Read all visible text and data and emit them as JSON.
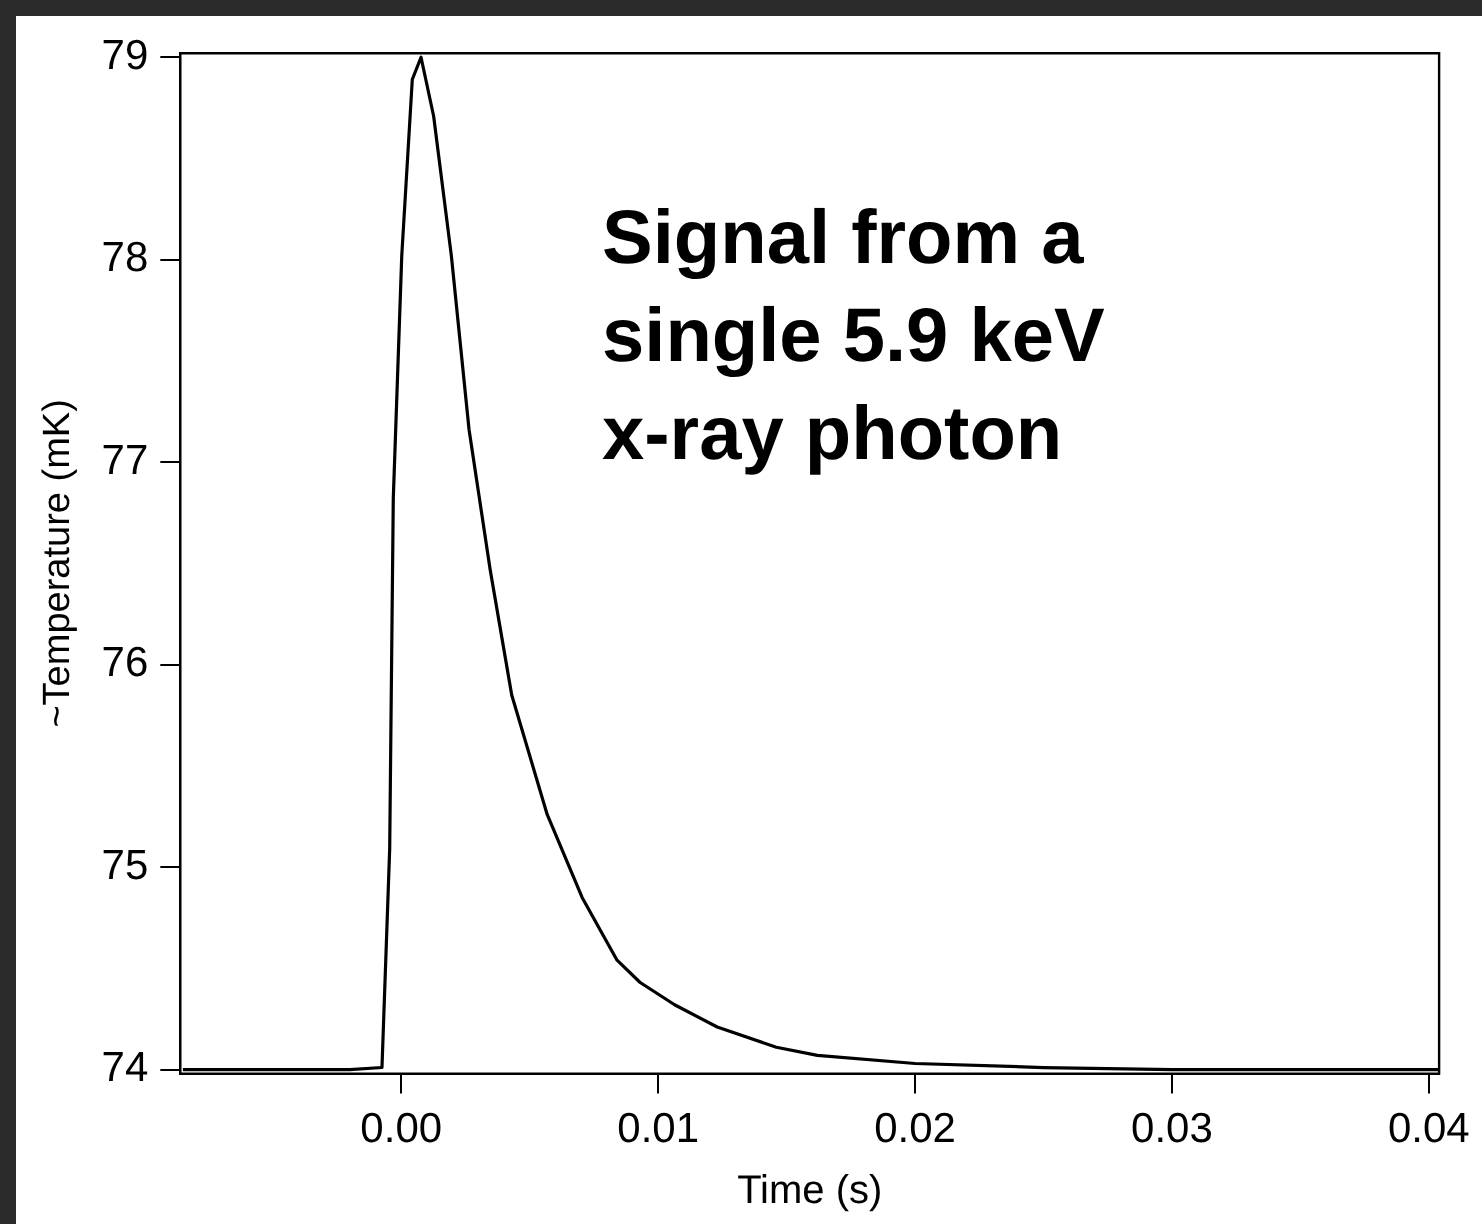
{
  "chart_data": {
    "type": "line",
    "xlabel": "Time (s)",
    "ylabel": "~Temperature (mK)",
    "annotations": [
      "Signal from a single 5.9 keV x-ray photon"
    ],
    "x": [
      -0.0085,
      -0.005,
      -0.002,
      -0.00075,
      -0.00045,
      -0.00031,
      2e-05,
      0.00043,
      0.00077,
      0.00126,
      0.00195,
      0.00264,
      0.00346,
      0.0043,
      0.00568,
      0.00704,
      0.0084,
      0.0093,
      0.01064,
      0.0123,
      0.0146,
      0.0162,
      0.02,
      0.025,
      0.03,
      0.035,
      0.0404
    ],
    "series": [
      {
        "color": "#000000",
        "values": [
          74.0,
          74.0,
          74.0,
          74.01,
          75.09,
          76.82,
          78.02,
          78.89,
          79.0,
          78.71,
          78.02,
          77.16,
          76.47,
          75.85,
          75.26,
          74.85,
          74.54,
          74.43,
          74.32,
          74.21,
          74.11,
          74.07,
          74.03,
          74.01,
          74.0,
          74.0,
          74.0
        ]
      }
    ],
    "xlim": [
      -0.0086,
      0.0404
    ],
    "ylim": [
      73.98,
      79.02
    ],
    "xticks": [
      {
        "value": 0,
        "label": "0.00"
      },
      {
        "value": 0.01,
        "label": "0.01"
      },
      {
        "value": 0.02,
        "label": "0.02"
      },
      {
        "value": 0.03,
        "label": "0.03"
      },
      {
        "value": 0.04,
        "label": "0.04"
      }
    ],
    "yticks": [
      74,
      75,
      76,
      77,
      78,
      79
    ],
    "grid": false,
    "legend": false,
    "marker": "none",
    "line_style": "solid"
  }
}
